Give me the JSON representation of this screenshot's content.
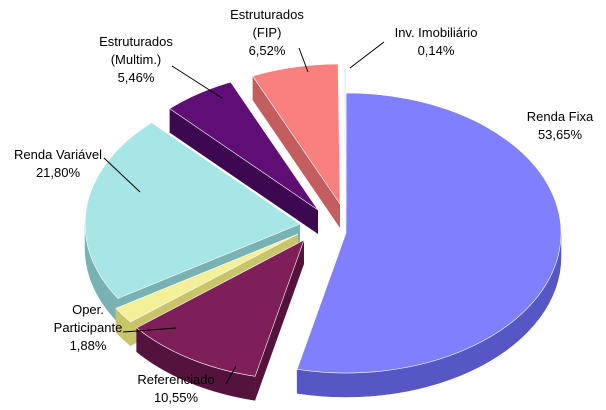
{
  "chart_data": {
    "type": "pie",
    "style": "3d-exploded",
    "legend": "none",
    "slices": [
      {
        "label": "Renda Fixa",
        "value_label": "53,65%",
        "value": 53.65,
        "color": "#8080FF",
        "side_color": "#5656C4"
      },
      {
        "label": "Referenciado",
        "value_label": "10,55%",
        "value": 10.55,
        "color": "#7E1F5A",
        "side_color": "#55123C"
      },
      {
        "label": "Oper. Participante",
        "value_label": "1,88%",
        "value": 1.88,
        "color": "#F4F09A",
        "side_color": "#C8C46A"
      },
      {
        "label": "Renda Variável",
        "value_label": "21,80%",
        "value": 21.8,
        "color": "#A6E6E6",
        "side_color": "#78B2B2"
      },
      {
        "label": "Estruturados (Multim.)",
        "value_label": "5,46%",
        "value": 5.46,
        "color": "#5E0E75",
        "side_color": "#3E0850"
      },
      {
        "label": "Estruturados (FIP)",
        "value_label": "6,52%",
        "value": 6.52,
        "color": "#FA8080",
        "side_color": "#C45E5E"
      },
      {
        "label": "Inv. Imobiliário",
        "value_label": "0,14%",
        "value": 0.14,
        "color": "#DDE8FF",
        "side_color": "#9AA8C8"
      }
    ]
  }
}
